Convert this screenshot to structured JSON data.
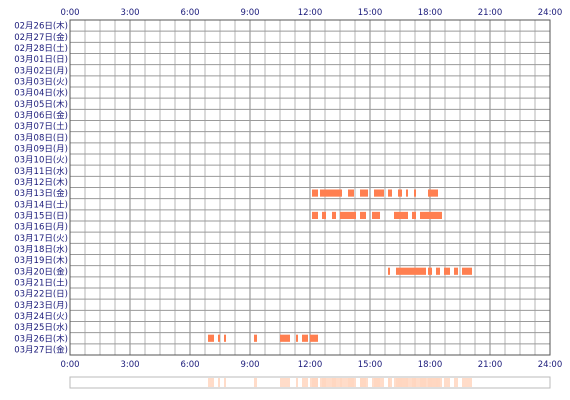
{
  "chart_data": {
    "type": "bar",
    "x_axis": {
      "range": [
        0,
        24
      ],
      "tick_values": [
        0,
        3,
        6,
        9,
        12,
        15,
        18,
        21,
        24
      ],
      "tick_labels": [
        "0:00",
        "3:00",
        "6:00",
        "9:00",
        "12:00",
        "15:00",
        "18:00",
        "21:00",
        "24:00"
      ]
    },
    "grid": true,
    "bar_color": "#ff7f50",
    "summary_color": "#ffd6bf",
    "rows": [
      {
        "label": "02月26日(木)",
        "intervals": []
      },
      {
        "label": "02月27日(金)",
        "intervals": []
      },
      {
        "label": "02月28日(土)",
        "intervals": []
      },
      {
        "label": "03月01日(日)",
        "intervals": []
      },
      {
        "label": "03月02日(月)",
        "intervals": []
      },
      {
        "label": "03月03日(火)",
        "intervals": []
      },
      {
        "label": "03月04日(水)",
        "intervals": []
      },
      {
        "label": "03月05日(木)",
        "intervals": []
      },
      {
        "label": "03月06日(金)",
        "intervals": []
      },
      {
        "label": "03月07日(土)",
        "intervals": []
      },
      {
        "label": "03月08日(日)",
        "intervals": []
      },
      {
        "label": "03月09日(月)",
        "intervals": []
      },
      {
        "label": "03月10日(火)",
        "intervals": []
      },
      {
        "label": "03月11日(水)",
        "intervals": []
      },
      {
        "label": "03月12日(木)",
        "intervals": []
      },
      {
        "label": "03月13日(金)",
        "intervals": [
          [
            12.1,
            12.4
          ],
          [
            12.5,
            13.6
          ],
          [
            13.9,
            14.2
          ],
          [
            14.5,
            14.9
          ],
          [
            15.2,
            15.7
          ],
          [
            15.9,
            16.1
          ],
          [
            16.4,
            16.6
          ],
          [
            16.8,
            16.9
          ],
          [
            17.2,
            17.3
          ],
          [
            17.9,
            18.4
          ]
        ]
      },
      {
        "label": "03月14日(土)",
        "intervals": []
      },
      {
        "label": "03月15日(日)",
        "intervals": [
          [
            12.1,
            12.4
          ],
          [
            12.6,
            12.8
          ],
          [
            13.1,
            13.3
          ],
          [
            13.5,
            14.3
          ],
          [
            14.5,
            14.8
          ],
          [
            15.1,
            15.5
          ],
          [
            16.2,
            16.9
          ],
          [
            17.1,
            17.3
          ],
          [
            17.5,
            18.6
          ]
        ]
      },
      {
        "label": "03月16日(月)",
        "intervals": []
      },
      {
        "label": "03月17日(火)",
        "intervals": []
      },
      {
        "label": "03月18日(水)",
        "intervals": []
      },
      {
        "label": "03月19日(木)",
        "intervals": []
      },
      {
        "label": "03月20日(金)",
        "intervals": [
          [
            15.9,
            16.0
          ],
          [
            16.3,
            17.8
          ],
          [
            17.9,
            18.1
          ],
          [
            18.3,
            18.5
          ],
          [
            18.7,
            19.0
          ],
          [
            19.2,
            19.4
          ],
          [
            19.6,
            20.1
          ]
        ]
      },
      {
        "label": "03月21日(土)",
        "intervals": []
      },
      {
        "label": "03月22日(日)",
        "intervals": []
      },
      {
        "label": "03月23日(月)",
        "intervals": []
      },
      {
        "label": "03月24日(火)",
        "intervals": []
      },
      {
        "label": "03月25日(水)",
        "intervals": []
      },
      {
        "label": "03月26日(木)",
        "intervals": [
          [
            6.9,
            7.2
          ],
          [
            7.4,
            7.5
          ],
          [
            7.7,
            7.8
          ],
          [
            9.2,
            9.35
          ],
          [
            10.5,
            11.0
          ],
          [
            11.3,
            11.4
          ],
          [
            11.6,
            11.9
          ],
          [
            12.0,
            12.4
          ]
        ]
      },
      {
        "label": "03月27日(金)",
        "intervals": []
      }
    ]
  }
}
